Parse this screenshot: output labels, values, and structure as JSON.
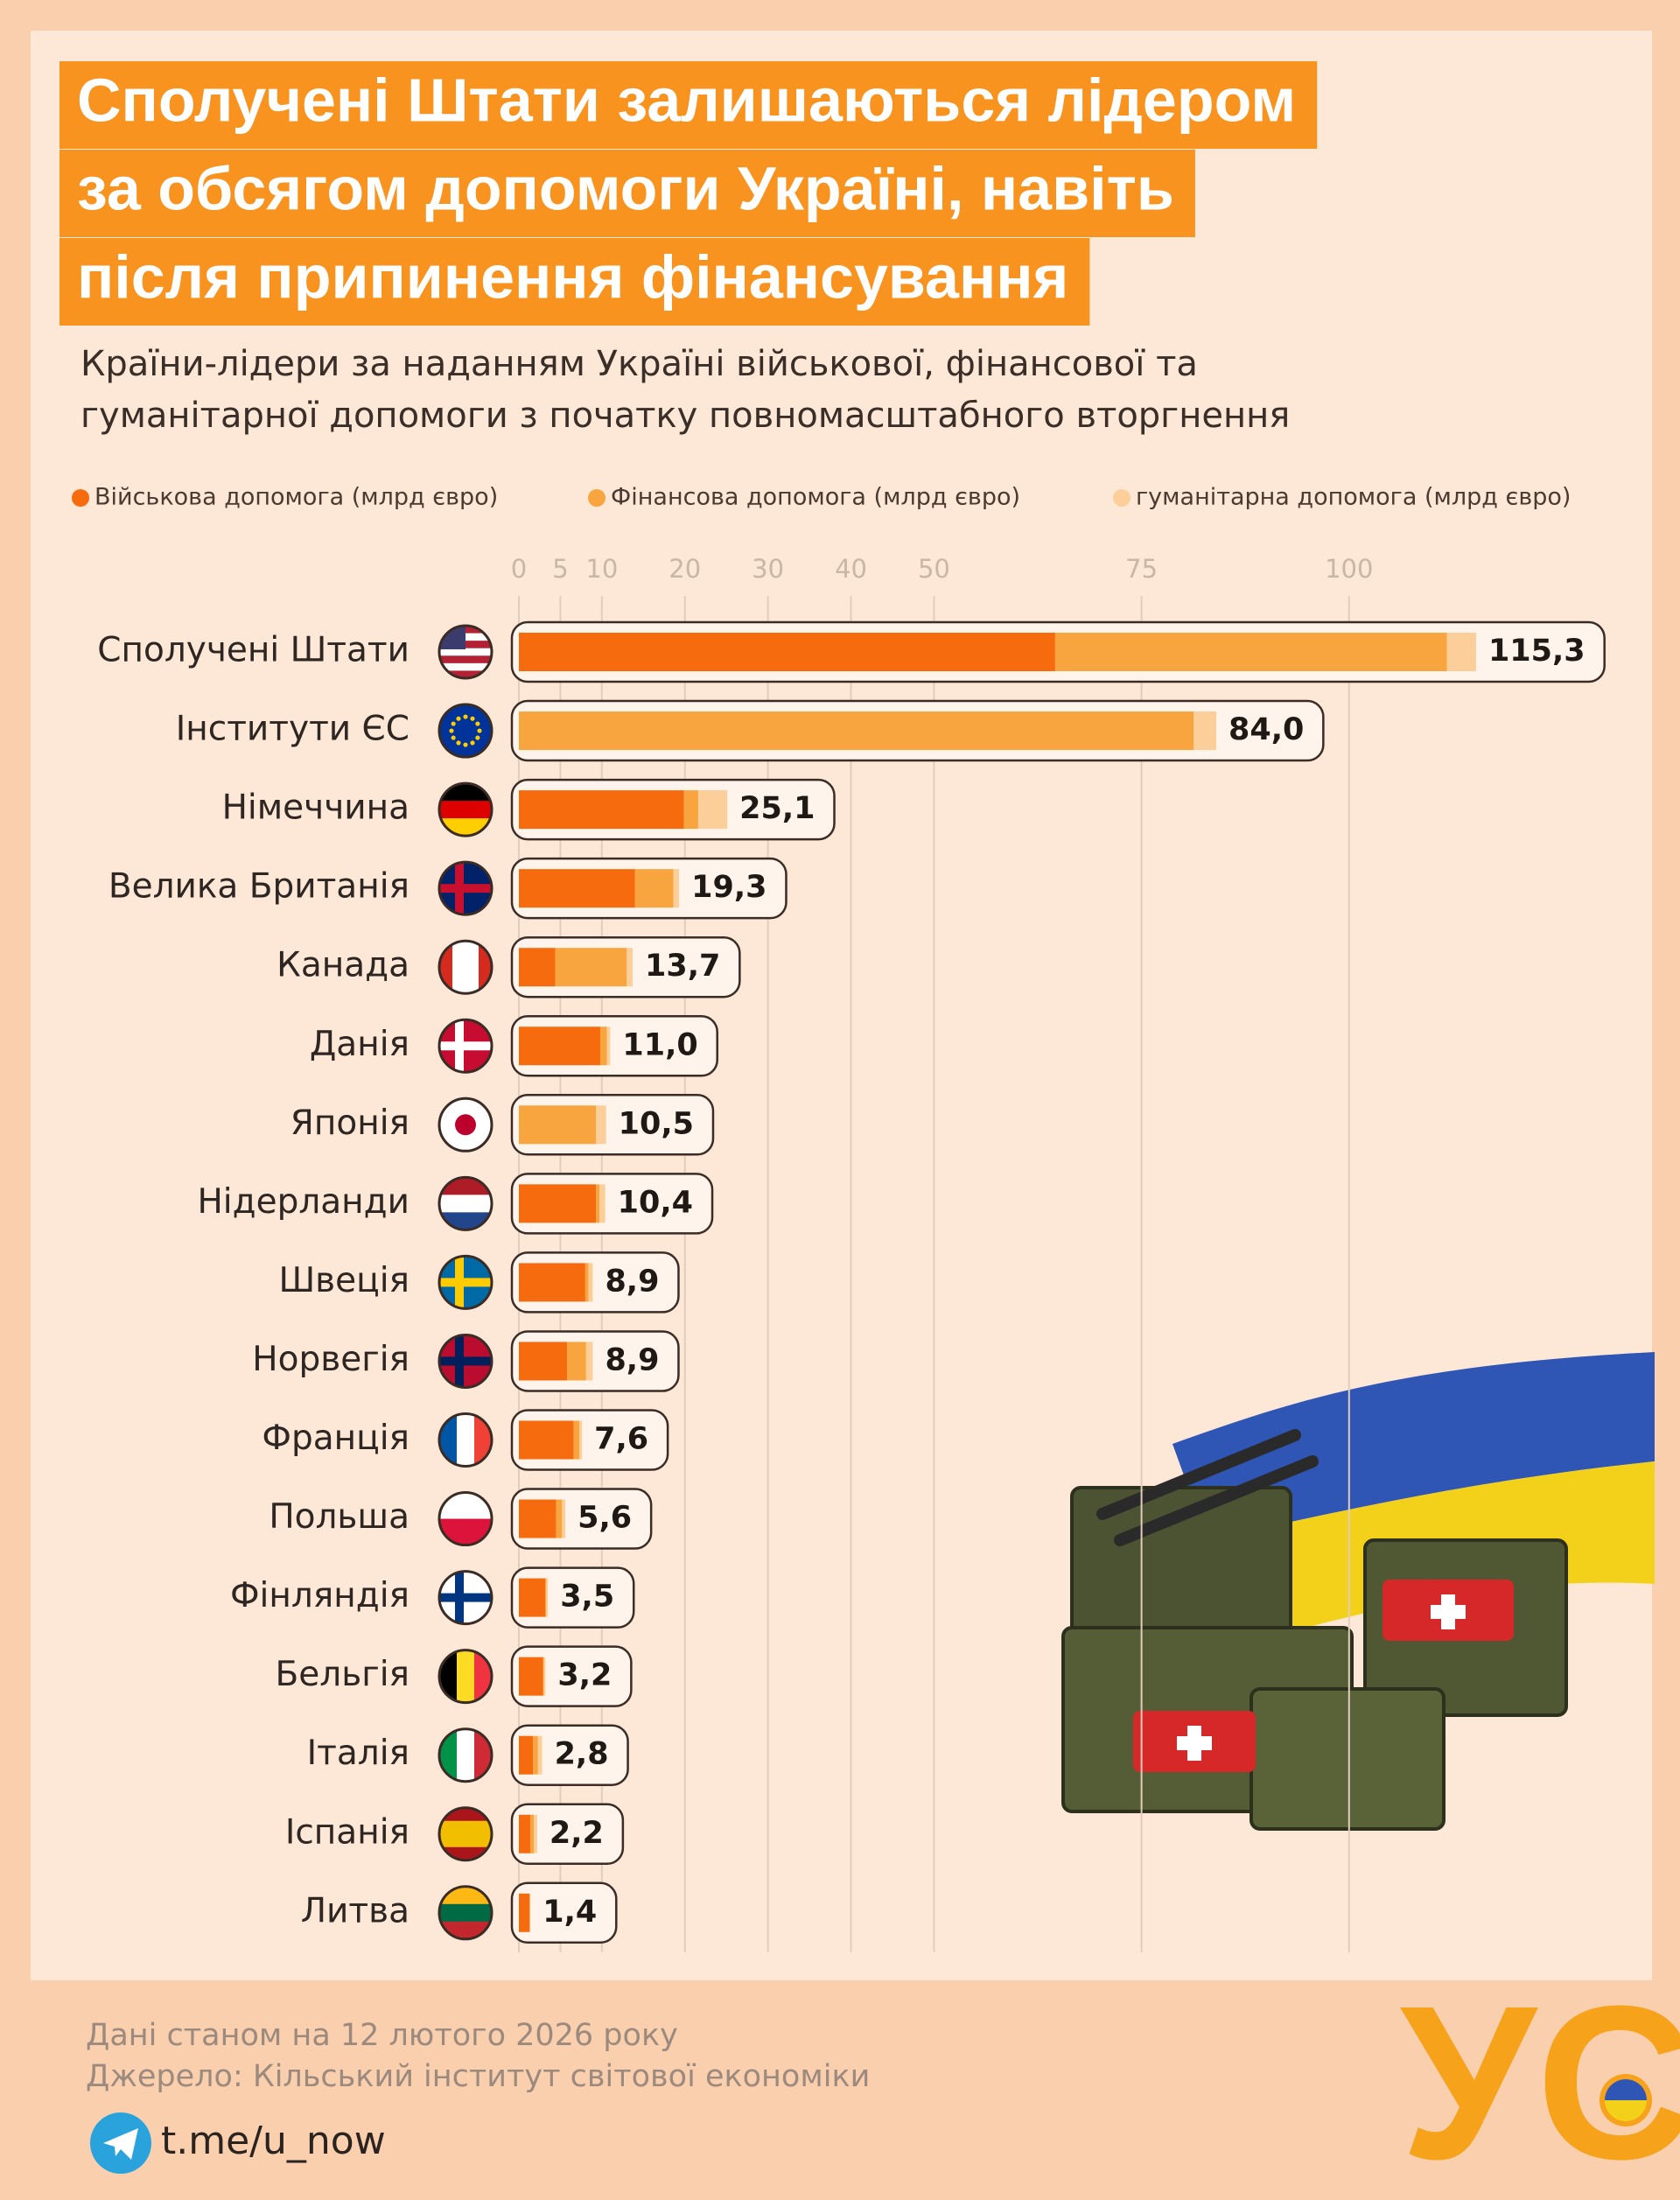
{
  "chart_data": {
    "type": "stacked-barh",
    "title_lines": [
      "Сполучені Штати залишаються лідером",
      "за обсягом допомоги Україні, навіть",
      "після припинення фінансування"
    ],
    "subtitle_lines": [
      "Країни-лідери за наданням Україні військової, фінансової та",
      "гуманітарної допомоги з початку повномасштабного вторгнення"
    ],
    "categories": [
      "Сполучені Штати",
      "Інститути ЄС",
      "Німеччина",
      "Велика Британія",
      "Канада",
      "Данія",
      "Японія",
      "Нідерланди",
      "Швеція",
      "Норвегія",
      "Франція",
      "Польша",
      "Фінляндія",
      "Бельгія",
      "Італія",
      "Іспанія",
      "Литва"
    ],
    "series": [
      {
        "name": "Військова допомога (млрд євро)",
        "color": "#f76b0f",
        "values": [
          64.6,
          0,
          19.9,
          14.0,
          4.4,
          9.8,
          0,
          9.3,
          8.0,
          5.8,
          6.6,
          4.5,
          3.2,
          2.9,
          1.7,
          1.4,
          1.3
        ]
      },
      {
        "name": "Фінансова допомога (млрд євро)",
        "color": "#f9a53f",
        "values": [
          47.2,
          81.3,
          1.7,
          4.6,
          8.6,
          0.8,
          9.3,
          0.4,
          0.4,
          2.3,
          0.7,
          0.7,
          0.1,
          0.1,
          0.6,
          0.4,
          0.0
        ]
      },
      {
        "name": "гуманітарна допомога (млрд євро)",
        "color": "#fccf9a",
        "values": [
          3.5,
          2.7,
          3.5,
          0.7,
          0.7,
          0.4,
          1.2,
          0.7,
          0.5,
          0.8,
          0.3,
          0.4,
          0.2,
          0.2,
          0.5,
          0.4,
          0.1
        ]
      }
    ],
    "totals": [
      115.3,
      84.0,
      25.1,
      19.3,
      13.7,
      11.0,
      10.5,
      10.4,
      8.9,
      8.9,
      7.6,
      5.6,
      3.5,
      3.2,
      2.8,
      2.2,
      1.4
    ],
    "total_labels": [
      "115,3",
      "84,0",
      "25,1",
      "19,3",
      "13,7",
      "11,0",
      "10,5",
      "10,4",
      "8,9",
      "8,9",
      "7,6",
      "5,6",
      "3,5",
      "3,2",
      "2,8",
      "2,2",
      "1,4"
    ],
    "xlim": [
      0,
      125
    ],
    "xticks": [
      0,
      5,
      10,
      20,
      30,
      40,
      50,
      75,
      100
    ],
    "grid": true
  },
  "footer": {
    "notes": [
      "Дані станом на 12 лютого 2026 року",
      "Джерело: Кільський інститут світової економіки"
    ],
    "channel": "t.me/u_now",
    "logo": "УС"
  }
}
